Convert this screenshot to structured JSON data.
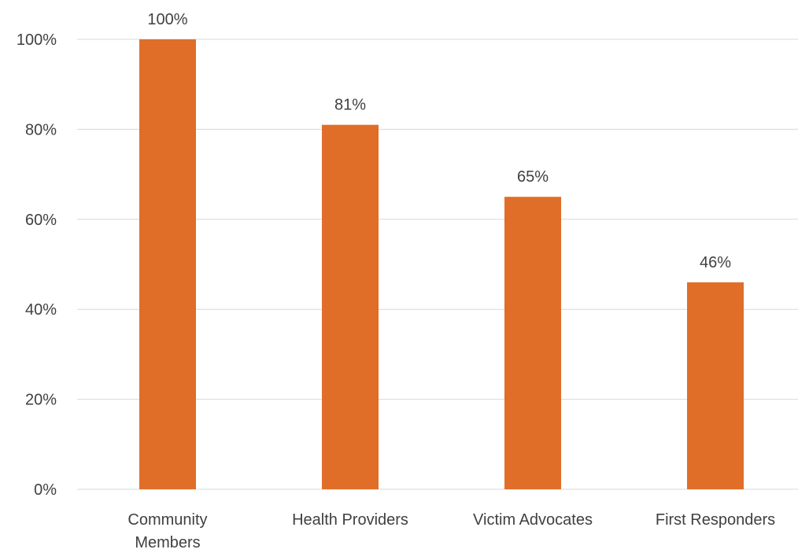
{
  "chart_data": {
    "type": "bar",
    "title": "",
    "xlabel": "",
    "ylabel": "",
    "categories": [
      [
        "Community",
        "Members"
      ],
      [
        "Health Providers"
      ],
      [
        "Victim Advocates"
      ],
      [
        "First Responders"
      ]
    ],
    "values": [
      100,
      81,
      65,
      46
    ],
    "data_labels": [
      "100%",
      "81%",
      "65%",
      "46%"
    ],
    "ylim": [
      0,
      100
    ],
    "yticks": [
      0,
      20,
      40,
      60,
      80,
      100
    ],
    "ytick_labels": [
      "0%",
      "20%",
      "40%",
      "60%",
      "80%",
      "100%"
    ],
    "grid": true,
    "legend": "none",
    "bar_color": "#e06e28"
  }
}
